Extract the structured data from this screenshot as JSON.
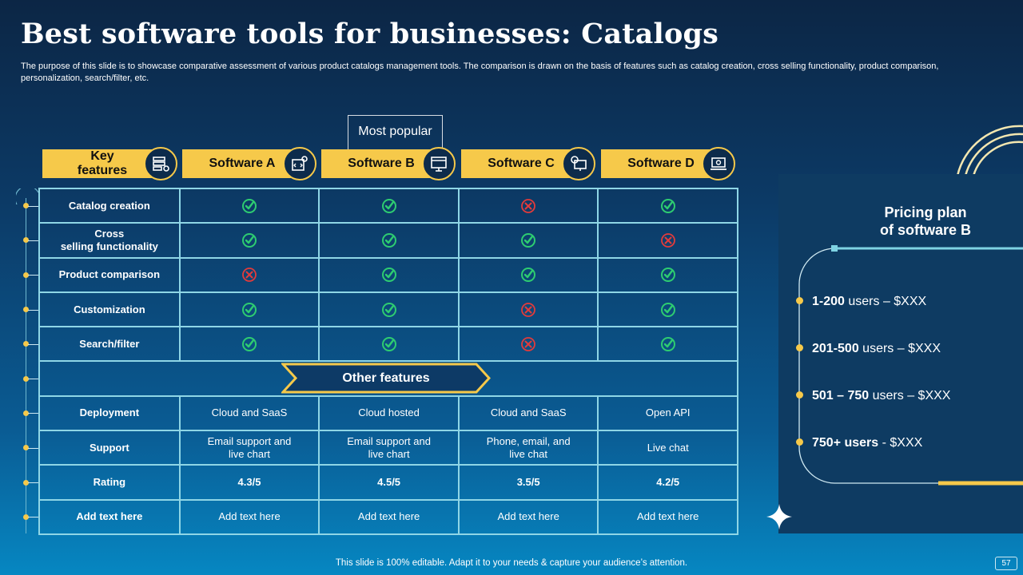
{
  "title": "Best software tools for businesses: Catalogs",
  "subtitle": "The purpose of this slide is to showcase comparative assessment of various product catalogs management tools. The comparison is drawn on the basis of features such as catalog creation, cross selling functionality, product comparison, personalization, search/filter, etc.",
  "most_popular": "Most popular",
  "headers": {
    "key_features_line1": "Key",
    "key_features_line2": "features",
    "software_a": "Software A",
    "software_b": "Software B",
    "software_c": "Software C",
    "software_d": "Software D"
  },
  "feature_rows": [
    {
      "label": "Catalog creation",
      "line2": "",
      "marks": [
        "check",
        "check",
        "cross",
        "check"
      ]
    },
    {
      "label": "Cross",
      "line2": "selling functionality",
      "marks": [
        "check",
        "check",
        "check",
        "cross"
      ]
    },
    {
      "label": "Product comparison",
      "line2": "",
      "marks": [
        "cross",
        "check",
        "check",
        "check"
      ]
    },
    {
      "label": "Customization",
      "line2": "",
      "marks": [
        "check",
        "check",
        "cross",
        "check"
      ]
    },
    {
      "label": "Search/filter",
      "line2": "",
      "marks": [
        "check",
        "check",
        "cross",
        "check"
      ]
    }
  ],
  "other_features": "Other features",
  "deployment": {
    "label": "Deployment",
    "values": [
      "Cloud and SaaS",
      "Cloud hosted",
      "Cloud and SaaS",
      "Open API"
    ]
  },
  "support": {
    "label": "Support",
    "values": [
      {
        "l1": "Email support and",
        "l2": "live chart"
      },
      {
        "l1": "Email support and",
        "l2": "live chart"
      },
      {
        "l1": "Phone, email, and",
        "l2": "live chat"
      },
      {
        "l1": "Live chat",
        "l2": ""
      }
    ]
  },
  "rating": {
    "label": "Rating",
    "values": [
      "4.3/5",
      "4.5/5",
      "3.5/5",
      "4.2/5"
    ]
  },
  "add_text": {
    "label": "Add text here",
    "values": [
      "Add text here",
      "Add text here",
      "Add text here",
      "Add text here"
    ]
  },
  "pricing": {
    "title_line1": "Pricing plan",
    "title_line2": "of software B",
    "items": [
      {
        "bold": "1-200",
        "rest": " users – $XXX"
      },
      {
        "bold": "201-500",
        "rest": " users – $XXX"
      },
      {
        "bold": "501 – 750",
        "rest": " users – $XXX"
      },
      {
        "bold": "750+ users",
        "rest": " - $XXX"
      }
    ]
  },
  "footer": "This slide is 100% editable. Adapt it to your needs & capture your audience’s attention.",
  "page_number": "57",
  "colors": {
    "accent_yellow": "#f6c94a",
    "check_green": "#2ecc71",
    "cross_red": "#e23b3b",
    "grid_line": "#8fd6e6"
  },
  "icons": {
    "check": "check-circle-icon",
    "cross": "cross-circle-icon"
  }
}
